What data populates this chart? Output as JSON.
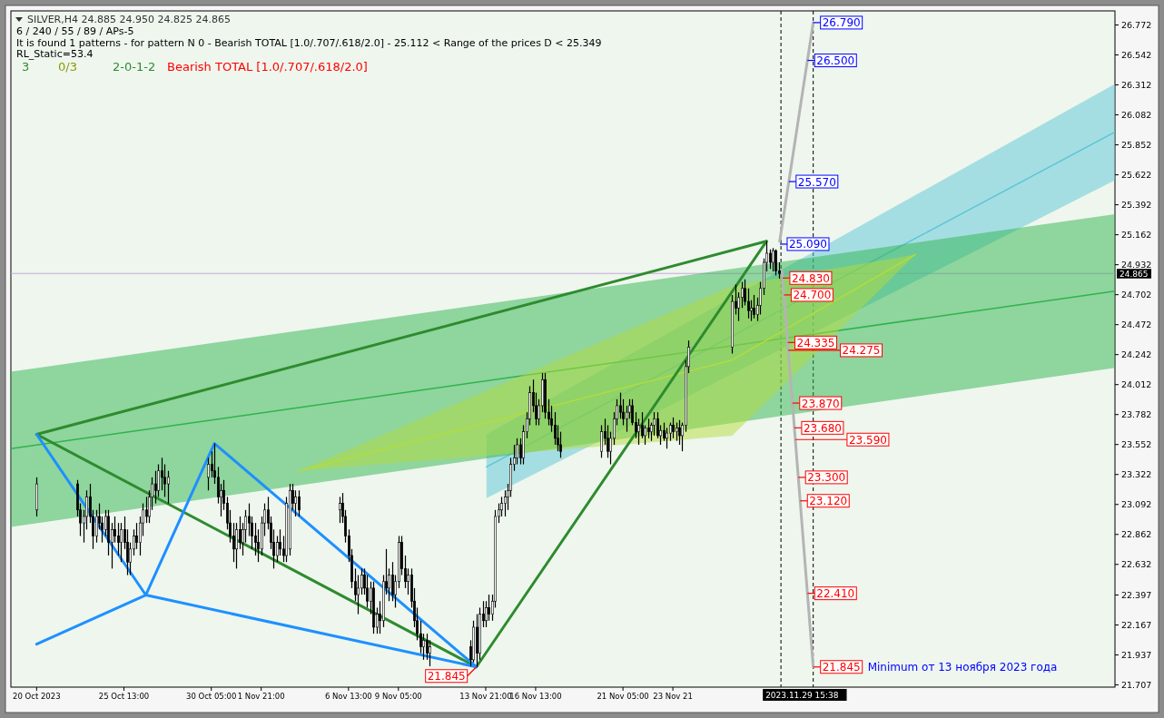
{
  "chart_data": {
    "type": "candlestick",
    "title": "SILVER,H4  24.885 24.950 24.825 24.865",
    "subtitle": "6 / 240 / 55 / 89 / APs-5",
    "annotations": [
      "It is found 1 patterns  -  for pattern N 0 - Bearish TOTAL [1.0/.707/.618/2.0] - 25.112 < Range of the prices D < 25.349",
      "RL_Static=53.4",
      "3",
      "0/3",
      "2-0-1-2",
      "Bearish TOTAL [1.0/.707/.618/2.0]",
      "Minimum  от 13 ноября 2023 года",
      {
        "text": "21.845",
        "x": "2023-11-13T09:00",
        "y": 21.845
      },
      {
        "text": "26.790",
        "x": "2023-12-01T09:00",
        "y": 26.79
      },
      {
        "text": "26.500",
        "x": "2023-12-01T01:34",
        "y": 26.5
      },
      {
        "text": "25.570",
        "x": "2023-11-30T01:44",
        "y": 25.57
      },
      {
        "text": "25.090",
        "x": "2023-11-29T14:17",
        "y": 25.09
      },
      {
        "text": "24.830",
        "x": "2023-11-29T17:43",
        "y": 24.83
      },
      {
        "text": "24.700",
        "x": "2023-11-29T19:25",
        "y": 24.7
      },
      {
        "text": "24.335",
        "x": "2023-11-30T00:14",
        "y": 24.335
      },
      {
        "text": "24.275",
        "x": "2023-11-30T01:01",
        "y": 24.275
      },
      {
        "text": "23.870",
        "x": "2023-11-30T06:21",
        "y": 23.87
      },
      {
        "text": "23.680",
        "x": "2023-11-30T08:51",
        "y": 23.68
      },
      {
        "text": "23.590",
        "x": "2023-11-30T10:02",
        "y": 23.59
      },
      {
        "text": "23.300",
        "x": "2023-11-30T13:51",
        "y": 23.3
      },
      {
        "text": "23.120",
        "x": "2023-11-30T16:13",
        "y": 23.12
      },
      {
        "text": "22.410",
        "x": "2023-12-01T01:34",
        "y": 22.41
      },
      {
        "text": "21.845",
        "x": "2023-12-01T09:00",
        "y": 21.845
      }
    ],
    "xlim": [
      "2023-10-19T12:00",
      "2023-12-17T12:00"
    ],
    "xticks": [
      {
        "value": "2023-10-20T21:00",
        "label": "20 Oct 2023"
      },
      {
        "value": "2023-10-25T13:00",
        "label": "25 Oct 13:00"
      },
      {
        "value": "2023-10-30T05:00",
        "label": "30 Oct 05:00"
      },
      {
        "value": "2023-11-01T21:00",
        "label": "1 Nov 21:00"
      },
      {
        "value": "2023-11-06T13:00",
        "label": "6 Nov 13:00"
      },
      {
        "value": "2023-11-09T05:00",
        "label": "9 Nov 05:00"
      },
      {
        "value": "2023-11-13T21:00",
        "label": "13 Nov 21:00"
      },
      {
        "value": "2023-11-16T13:00",
        "label": "16 Nov 13:00"
      },
      {
        "value": "2023-11-21T05:00",
        "label": "21 Nov 05:00"
      },
      {
        "value": "2023-11-23T21:00",
        "label": "23 Nov 21"
      }
    ],
    "ylim": [
      21.69,
      26.88
    ],
    "yticks": [
      26.772,
      26.542,
      26.312,
      26.082,
      25.852,
      25.622,
      25.392,
      25.162,
      24.932,
      24.702,
      24.472,
      24.242,
      24.012,
      23.782,
      23.552,
      23.322,
      23.092,
      22.862,
      22.632,
      22.397,
      22.167,
      21.937,
      21.707
    ],
    "ref_lines": [
      {
        "axis": "y",
        "value": 24.865,
        "label": "24.865",
        "color": "#c8a8d8",
        "line_style": "solid"
      },
      {
        "axis": "x",
        "value": "2023-11-29T15:38",
        "label": "2023.11.29 15:38",
        "color": "#000000",
        "line_style": "dashed"
      },
      {
        "axis": "x",
        "value": "2023-12-01T09:00",
        "label": null,
        "color": "#000000",
        "line_style": "dashed"
      }
    ],
    "x": [
      "2023-10-20T21:00",
      "2023-10-23T01:00",
      "2023-10-23T05:00",
      "2023-10-23T09:00",
      "2023-10-23T13:00",
      "2023-10-23T17:00",
      "2023-10-23T21:00",
      "2023-10-24T01:00",
      "2023-10-24T05:00",
      "2023-10-24T09:00",
      "2023-10-24T13:00",
      "2023-10-24T17:00",
      "2023-10-24T21:00",
      "2023-10-25T01:00",
      "2023-10-25T05:00",
      "2023-10-25T09:00",
      "2023-10-25T13:00",
      "2023-10-25T17:00",
      "2023-10-25T21:00",
      "2023-10-26T01:00",
      "2023-10-26T05:00",
      "2023-10-26T09:00",
      "2023-10-26T13:00",
      "2023-10-26T17:00",
      "2023-10-26T21:00",
      "2023-10-27T01:00",
      "2023-10-27T05:00",
      "2023-10-27T09:00",
      "2023-10-27T13:00",
      "2023-10-27T17:00",
      "2023-10-27T21:00",
      "2023-10-30T01:00",
      "2023-10-30T05:00",
      "2023-10-30T09:00",
      "2023-10-30T13:00",
      "2023-10-30T17:00",
      "2023-10-30T21:00",
      "2023-10-31T01:00",
      "2023-10-31T05:00",
      "2023-10-31T09:00",
      "2023-10-31T13:00",
      "2023-10-31T17:00",
      "2023-10-31T21:00",
      "2023-11-01T01:00",
      "2023-11-01T05:00",
      "2023-11-01T09:00",
      "2023-11-01T13:00",
      "2023-11-01T17:00",
      "2023-11-01T21:00",
      "2023-11-02T01:00",
      "2023-11-02T05:00",
      "2023-11-02T09:00",
      "2023-11-02T13:00",
      "2023-11-02T17:00",
      "2023-11-02T21:00",
      "2023-11-03T01:00",
      "2023-11-03T05:00",
      "2023-11-03T09:00",
      "2023-11-03T13:00",
      "2023-11-03T17:00",
      "2023-11-03T21:00",
      "2023-11-06T01:00",
      "2023-11-06T05:00",
      "2023-11-06T09:00",
      "2023-11-06T13:00",
      "2023-11-06T17:00",
      "2023-11-06T21:00",
      "2023-11-07T01:00",
      "2023-11-07T05:00",
      "2023-11-07T09:00",
      "2023-11-07T13:00",
      "2023-11-07T17:00",
      "2023-11-07T21:00",
      "2023-11-08T01:00",
      "2023-11-08T05:00",
      "2023-11-08T09:00",
      "2023-11-08T13:00",
      "2023-11-08T17:00",
      "2023-11-08T21:00",
      "2023-11-09T01:00",
      "2023-11-09T05:00",
      "2023-11-09T09:00",
      "2023-11-09T13:00",
      "2023-11-09T17:00",
      "2023-11-09T21:00",
      "2023-11-10T01:00",
      "2023-11-10T05:00",
      "2023-11-10T09:00",
      "2023-11-10T13:00",
      "2023-11-10T17:00",
      "2023-11-10T21:00",
      "2023-11-13T01:00",
      "2023-11-13T05:00",
      "2023-11-13T09:00",
      "2023-11-13T13:00",
      "2023-11-13T17:00",
      "2023-11-13T21:00",
      "2023-11-14T01:00",
      "2023-11-14T05:00",
      "2023-11-14T09:00",
      "2023-11-14T13:00",
      "2023-11-14T17:00",
      "2023-11-14T21:00",
      "2023-11-15T01:00",
      "2023-11-15T05:00",
      "2023-11-15T09:00",
      "2023-11-15T13:00",
      "2023-11-15T17:00",
      "2023-11-15T21:00",
      "2023-11-16T01:00",
      "2023-11-16T05:00",
      "2023-11-16T09:00",
      "2023-11-16T13:00",
      "2023-11-16T17:00",
      "2023-11-16T21:00",
      "2023-11-17T01:00",
      "2023-11-17T05:00",
      "2023-11-17T09:00",
      "2023-11-17T13:00",
      "2023-11-17T17:00",
      "2023-11-17T21:00",
      "2023-11-20T01:00",
      "2023-11-20T05:00",
      "2023-11-20T09:00",
      "2023-11-20T13:00",
      "2023-11-20T17:00",
      "2023-11-20T21:00",
      "2023-11-21T01:00",
      "2023-11-21T05:00",
      "2023-11-21T09:00",
      "2023-11-21T13:00",
      "2023-11-21T17:00",
      "2023-11-21T21:00",
      "2023-11-22T01:00",
      "2023-11-22T05:00",
      "2023-11-22T09:00",
      "2023-11-22T13:00",
      "2023-11-22T17:00",
      "2023-11-22T21:00",
      "2023-11-23T01:00",
      "2023-11-23T05:00",
      "2023-11-23T09:00",
      "2023-11-23T13:00",
      "2023-11-23T17:00",
      "2023-11-23T21:00",
      "2023-11-24T01:00",
      "2023-11-24T05:00",
      "2023-11-24T09:00",
      "2023-11-24T13:00",
      "2023-11-24T17:00",
      "2023-11-27T01:00",
      "2023-11-27T05:00",
      "2023-11-27T09:00",
      "2023-11-27T13:00",
      "2023-11-27T17:00",
      "2023-11-27T21:00",
      "2023-11-28T01:00",
      "2023-11-28T05:00",
      "2023-11-28T09:00",
      "2023-11-28T13:00",
      "2023-11-28T17:00",
      "2023-11-28T21:00",
      "2023-11-29T01:00",
      "2023-11-29T05:00",
      "2023-11-29T09:00",
      "2023-11-29T13:00"
    ],
    "ohlc": [
      [
        23.05,
        23.3,
        23.0,
        23.25
      ],
      [
        23.25,
        23.28,
        23.0,
        23.05
      ],
      [
        23.05,
        23.1,
        22.85,
        22.95
      ],
      [
        22.95,
        23.05,
        22.8,
        23.0
      ],
      [
        23.0,
        23.2,
        22.9,
        23.15
      ],
      [
        23.15,
        23.25,
        22.95,
        23.0
      ],
      [
        23.0,
        23.05,
        22.75,
        22.85
      ],
      [
        22.85,
        23.05,
        22.8,
        23.0
      ],
      [
        23.0,
        23.1,
        22.9,
        22.95
      ],
      [
        22.95,
        23.0,
        22.8,
        22.9
      ],
      [
        22.9,
        23.05,
        22.85,
        23.0
      ],
      [
        23.0,
        23.05,
        22.7,
        22.8
      ],
      [
        22.8,
        22.95,
        22.6,
        22.9
      ],
      [
        22.9,
        23.0,
        22.8,
        22.85
      ],
      [
        22.85,
        22.95,
        22.7,
        22.8
      ],
      [
        22.8,
        22.95,
        22.65,
        22.9
      ],
      [
        22.9,
        23.0,
        22.75,
        22.8
      ],
      [
        22.8,
        22.9,
        22.55,
        22.65
      ],
      [
        22.65,
        22.8,
        22.55,
        22.75
      ],
      [
        22.75,
        22.9,
        22.7,
        22.85
      ],
      [
        22.85,
        22.95,
        22.75,
        22.8
      ],
      [
        22.8,
        23.0,
        22.7,
        22.95
      ],
      [
        22.95,
        23.1,
        22.85,
        23.05
      ],
      [
        23.05,
        23.15,
        22.95,
        23.0
      ],
      [
        23.0,
        23.2,
        22.95,
        23.15
      ],
      [
        23.15,
        23.3,
        23.05,
        23.25
      ],
      [
        23.25,
        23.35,
        23.1,
        23.2
      ],
      [
        23.2,
        23.4,
        23.15,
        23.35
      ],
      [
        23.35,
        23.45,
        23.2,
        23.3
      ],
      [
        23.3,
        23.4,
        23.15,
        23.25
      ],
      [
        23.25,
        23.35,
        23.1,
        23.3
      ],
      [
        23.3,
        23.45,
        23.2,
        23.4
      ],
      [
        23.4,
        23.5,
        23.3,
        23.35
      ],
      [
        23.35,
        23.56,
        23.25,
        23.3
      ],
      [
        23.3,
        23.38,
        23.1,
        23.15
      ],
      [
        23.15,
        23.25,
        23.0,
        23.2
      ],
      [
        23.2,
        23.28,
        23.05,
        23.1
      ],
      [
        23.1,
        23.15,
        22.9,
        22.95
      ],
      [
        22.95,
        23.05,
        22.8,
        22.85
      ],
      [
        22.85,
        22.95,
        22.65,
        22.75
      ],
      [
        22.75,
        22.95,
        22.6,
        22.9
      ],
      [
        22.9,
        23.0,
        22.75,
        22.8
      ],
      [
        22.8,
        22.95,
        22.7,
        22.9
      ],
      [
        22.9,
        23.05,
        22.8,
        23.0
      ],
      [
        23.0,
        23.1,
        22.85,
        22.95
      ],
      [
        22.95,
        23.0,
        22.75,
        22.85
      ],
      [
        22.85,
        22.95,
        22.7,
        22.8
      ],
      [
        22.8,
        22.9,
        22.65,
        22.75
      ],
      [
        22.75,
        23.0,
        22.7,
        22.95
      ],
      [
        22.95,
        23.1,
        22.85,
        23.05
      ],
      [
        23.05,
        23.15,
        22.9,
        22.95
      ],
      [
        22.95,
        23.0,
        22.75,
        22.8
      ],
      [
        22.8,
        22.9,
        22.6,
        22.7
      ],
      [
        22.7,
        22.85,
        22.65,
        22.8
      ],
      [
        22.8,
        22.9,
        22.7,
        22.75
      ],
      [
        22.75,
        22.85,
        22.65,
        22.7
      ],
      [
        22.7,
        23.15,
        22.65,
        23.1
      ],
      [
        22.75,
        23.25,
        22.7,
        23.2
      ],
      [
        23.2,
        23.25,
        23.05,
        23.1
      ],
      [
        23.1,
        23.2,
        23.0,
        23.15
      ],
      [
        23.15,
        23.2,
        23.0,
        23.05
      ],
      [
        23.05,
        23.15,
        22.95,
        23.1
      ],
      [
        23.1,
        23.18,
        22.95,
        23.0
      ],
      [
        23.0,
        23.05,
        22.8,
        22.85
      ],
      [
        22.85,
        22.9,
        22.65,
        22.7
      ],
      [
        22.7,
        22.75,
        22.45,
        22.5
      ],
      [
        22.5,
        22.6,
        22.35,
        22.4
      ],
      [
        22.4,
        22.55,
        22.25,
        22.45
      ],
      [
        22.45,
        22.6,
        22.4,
        22.55
      ],
      [
        22.55,
        22.6,
        22.4,
        22.45
      ],
      [
        22.45,
        22.55,
        22.3,
        22.35
      ],
      [
        22.35,
        22.5,
        22.25,
        22.45
      ],
      [
        22.45,
        22.5,
        22.1,
        22.15
      ],
      [
        22.15,
        22.3,
        22.1,
        22.25
      ],
      [
        22.25,
        22.35,
        22.1,
        22.2
      ],
      [
        22.2,
        22.55,
        22.15,
        22.5
      ],
      [
        22.5,
        22.75,
        22.4,
        22.45
      ],
      [
        22.45,
        22.6,
        22.35,
        22.55
      ],
      [
        22.55,
        22.65,
        22.35,
        22.4
      ],
      [
        22.4,
        22.55,
        22.3,
        22.5
      ],
      [
        22.5,
        22.85,
        22.45,
        22.8
      ],
      [
        22.8,
        22.85,
        22.55,
        22.6
      ],
      [
        22.6,
        22.7,
        22.45,
        22.5
      ],
      [
        22.5,
        22.6,
        22.4,
        22.55
      ],
      [
        22.55,
        22.6,
        22.3,
        22.35
      ],
      [
        22.35,
        22.45,
        22.15,
        22.2
      ],
      [
        22.2,
        22.3,
        22.05,
        22.1
      ],
      [
        22.1,
        22.2,
        21.95,
        22.0
      ],
      [
        22.0,
        22.1,
        21.9,
        22.05
      ],
      [
        22.05,
        22.1,
        21.9,
        21.95
      ],
      [
        21.95,
        22.05,
        21.85,
        22.0
      ],
      [
        22.0,
        22.05,
        21.85,
        21.9
      ],
      [
        21.9,
        22.2,
        21.88,
        22.15
      ],
      [
        22.15,
        22.25,
        21.845,
        21.95
      ],
      [
        21.95,
        22.3,
        21.9,
        22.25
      ],
      [
        22.25,
        22.35,
        22.15,
        22.2
      ],
      [
        22.2,
        22.35,
        22.15,
        22.3
      ],
      [
        22.3,
        22.4,
        22.2,
        22.25
      ],
      [
        22.25,
        22.4,
        22.2,
        22.35
      ],
      [
        22.35,
        23.05,
        22.3,
        23.0
      ],
      [
        23.0,
        23.1,
        22.95,
        23.05
      ],
      [
        23.05,
        23.15,
        23.0,
        23.1
      ],
      [
        23.1,
        23.2,
        23.0,
        23.15
      ],
      [
        23.15,
        23.25,
        23.05,
        23.2
      ],
      [
        23.2,
        23.45,
        23.15,
        23.4
      ],
      [
        23.4,
        23.55,
        23.35,
        23.45
      ],
      [
        23.45,
        23.6,
        23.4,
        23.55
      ],
      [
        23.55,
        23.6,
        23.4,
        23.45
      ],
      [
        23.45,
        23.7,
        23.4,
        23.65
      ],
      [
        23.65,
        23.8,
        23.6,
        23.75
      ],
      [
        23.75,
        24.0,
        23.7,
        23.95
      ],
      [
        23.95,
        24.05,
        23.8,
        23.85
      ],
      [
        23.85,
        23.95,
        23.7,
        23.75
      ],
      [
        23.75,
        23.9,
        23.7,
        23.85
      ],
      [
        23.85,
        24.1,
        23.8,
        24.05
      ],
      [
        24.05,
        24.1,
        23.75,
        23.8
      ],
      [
        23.8,
        23.9,
        23.7,
        23.75
      ],
      [
        23.75,
        23.85,
        23.65,
        23.7
      ],
      [
        23.7,
        23.8,
        23.55,
        23.6
      ],
      [
        23.6,
        23.7,
        23.5,
        23.55
      ],
      [
        23.55,
        23.65,
        23.45,
        23.5
      ],
      [
        23.5,
        23.7,
        23.45,
        23.65
      ],
      [
        23.65,
        23.75,
        23.55,
        23.6
      ],
      [
        23.6,
        23.7,
        23.45,
        23.5
      ],
      [
        23.5,
        23.65,
        23.4,
        23.6
      ],
      [
        23.6,
        23.8,
        23.55,
        23.75
      ],
      [
        23.75,
        23.9,
        23.7,
        23.85
      ],
      [
        23.85,
        23.95,
        23.75,
        23.8
      ],
      [
        23.8,
        23.9,
        23.7,
        23.75
      ],
      [
        23.75,
        23.85,
        23.65,
        23.8
      ],
      [
        23.8,
        23.9,
        23.75,
        23.85
      ],
      [
        23.85,
        23.9,
        23.7,
        23.72
      ],
      [
        23.72,
        23.8,
        23.6,
        23.65
      ],
      [
        23.65,
        23.75,
        23.55,
        23.7
      ],
      [
        23.7,
        23.8,
        23.6,
        23.62
      ],
      [
        23.62,
        23.7,
        23.55,
        23.68
      ],
      [
        23.68,
        23.75,
        23.6,
        23.65
      ],
      [
        23.65,
        23.72,
        23.58,
        23.7
      ],
      [
        23.7,
        23.8,
        23.62,
        23.75
      ],
      [
        23.75,
        23.8,
        23.6,
        23.62
      ],
      [
        23.62,
        23.7,
        23.55,
        23.66
      ],
      [
        23.66,
        23.72,
        23.58,
        23.6
      ],
      [
        23.6,
        23.68,
        23.52,
        23.64
      ],
      [
        23.64,
        23.72,
        23.58,
        23.7
      ],
      [
        23.7,
        23.76,
        23.6,
        23.65
      ],
      [
        23.65,
        23.72,
        23.58,
        23.68
      ],
      [
        23.68,
        23.74,
        23.55,
        23.62
      ],
      [
        23.62,
        23.72,
        23.5,
        23.7
      ],
      [
        23.7,
        24.2,
        23.65,
        24.15
      ],
      [
        24.15,
        24.35,
        24.1,
        24.3
      ],
      [
        24.3,
        24.7,
        24.25,
        24.65
      ],
      [
        24.65,
        24.78,
        24.55,
        24.6
      ],
      [
        24.6,
        24.72,
        24.5,
        24.68
      ],
      [
        24.68,
        24.8,
        24.6,
        24.75
      ],
      [
        24.75,
        24.82,
        24.62,
        24.65
      ],
      [
        24.65,
        24.75,
        24.52,
        24.58
      ],
      [
        24.58,
        24.66,
        24.5,
        24.6
      ],
      [
        24.6,
        24.7,
        24.52,
        24.55
      ],
      [
        24.55,
        24.68,
        24.5,
        24.62
      ],
      [
        24.62,
        24.8,
        24.55,
        24.75
      ],
      [
        24.75,
        24.98,
        24.7,
        24.95
      ],
      [
        24.95,
        25.112,
        24.88,
        25.02
      ],
      [
        25.02,
        25.05,
        24.9,
        24.95
      ],
      [
        24.95,
        25.06,
        24.88,
        25.04
      ],
      [
        25.04,
        25.05,
        24.85,
        24.885
      ],
      [
        24.885,
        24.95,
        24.825,
        24.865
      ]
    ],
    "series": [
      {
        "type": "line",
        "color": "#5cc6d6",
        "x": [
          "2023-11-13T22:00",
          "2023-12-17T12:00"
        ],
        "values": [
          23.38,
          25.95
        ],
        "lower": [
          23.14,
          25.58
        ],
        "upper": [
          23.63,
          26.32
        ]
      },
      {
        "type": "line",
        "color": "#2fb34e",
        "x": [
          "2023-10-19T12:00",
          "2023-12-17T12:00"
        ],
        "values": [
          23.52,
          24.73
        ],
        "lower": [
          22.92,
          24.14
        ],
        "upper": [
          24.11,
          25.32
        ]
      },
      {
        "type": "line",
        "color": "#b3dc3c",
        "x": [
          "2023-11-03T21:00",
          "2023-11-27T01:00",
          "2023-12-06T20:00"
        ],
        "values": [
          23.35,
          24.2,
          25.01
        ],
        "lower": [
          23.35,
          23.62,
          25.01
        ],
        "upper": [
          23.35,
          24.77,
          25.01
        ]
      },
      {
        "type": "line",
        "color": "#2e8b2e",
        "x": [
          "2023-10-20T21:00",
          "2023-11-13T09:00",
          "2023-11-28T21:00"
        ],
        "values": [
          23.63,
          21.845,
          25.112
        ]
      },
      {
        "type": "line",
        "color": "#2e8b2e",
        "x": [
          "2023-10-20T21:00",
          "2023-11-28T21:00"
        ],
        "values": [
          23.63,
          25.112
        ]
      },
      {
        "type": "line",
        "color": "#1e90ff",
        "x": [
          "2023-10-20T21:00",
          "2023-10-26T17:00",
          "2023-10-30T09:00",
          "2023-11-13T09:00"
        ],
        "values": [
          23.63,
          22.397,
          23.56,
          21.845
        ]
      },
      {
        "type": "line",
        "color": "#1e90ff",
        "x": [
          "2023-10-20T21:00",
          "2023-10-26T17:00",
          "2023-11-13T09:00"
        ],
        "values": [
          22.02,
          22.397,
          21.845
        ]
      },
      {
        "type": "line",
        "color": "#b4b4b4",
        "x": [
          "2023-11-29T14:00",
          "2023-12-01T09:00"
        ],
        "values": [
          25.112,
          26.79
        ]
      },
      {
        "type": "line",
        "color": "#b4b4b4",
        "x": [
          "2023-11-29T17:00",
          "2023-12-01T09:00"
        ],
        "values": [
          24.885,
          21.845
        ]
      }
    ]
  }
}
